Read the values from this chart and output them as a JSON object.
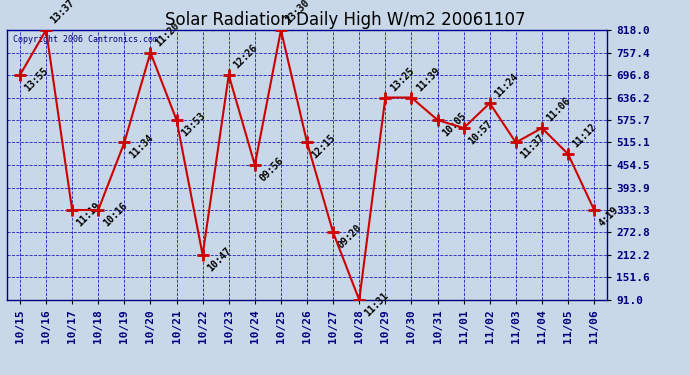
{
  "title": "Solar Radiation Daily High W/m2 20061107",
  "copyright_text": "Copyright 2006 Cantronics.com",
  "background_color": "#c8d8e8",
  "line_color": "#cc0000",
  "grid_color": "#0000bb",
  "title_fontsize": 12,
  "tick_fontsize": 8,
  "ann_fontsize": 7,
  "yticks": [
    91.0,
    151.6,
    212.2,
    272.8,
    333.3,
    393.9,
    454.5,
    515.1,
    575.7,
    636.2,
    696.8,
    757.4,
    818.0
  ],
  "x_labels": [
    "10/15",
    "10/16",
    "10/17",
    "10/18",
    "10/19",
    "10/20",
    "10/21",
    "10/22",
    "10/23",
    "10/24",
    "10/25",
    "10/26",
    "10/27",
    "10/28",
    "10/29",
    "10/30",
    "10/31",
    "11/01",
    "11/02",
    "11/03",
    "11/04",
    "11/05",
    "11/06"
  ],
  "values": [
    696.8,
    818.0,
    333.3,
    333.3,
    515.1,
    757.4,
    575.7,
    212.2,
    696.8,
    454.5,
    818.0,
    515.1,
    272.8,
    91.0,
    636.2,
    636.2,
    575.7,
    554.0,
    621.0,
    515.1,
    554.0,
    484.0,
    333.3
  ],
  "annotations": [
    "13:55",
    "13:37",
    "11:19",
    "10:16",
    "11:34",
    "11:20",
    "13:53",
    "10:47",
    "12:26",
    "09:56",
    "13:30",
    "12:15",
    "09:20",
    "11:31",
    "13:25",
    "11:39",
    "10:05",
    "10:57",
    "11:24",
    "11:37",
    "11:06",
    "11:12",
    "4:19"
  ],
  "ann_above": [
    false,
    true,
    false,
    false,
    false,
    true,
    false,
    false,
    true,
    false,
    true,
    false,
    false,
    false,
    true,
    true,
    false,
    false,
    true,
    false,
    true,
    true,
    false
  ]
}
